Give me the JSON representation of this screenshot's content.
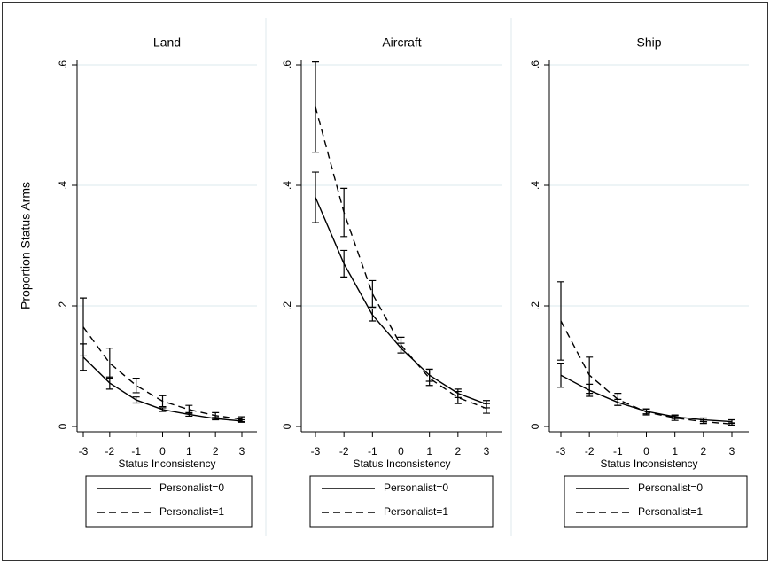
{
  "chart_data": [
    {
      "type": "line",
      "title": "Land",
      "x_label": "Status Inconsistency",
      "y_label": "Proportion Status Arms",
      "x": [
        -3,
        -2,
        -1,
        0,
        1,
        2,
        3
      ],
      "xlim": [
        -3,
        3
      ],
      "xticks": [
        -3,
        -2,
        -1,
        0,
        1,
        2,
        3
      ],
      "ylim": [
        0,
        0.6
      ],
      "yticks": [
        0,
        {
          "value": 0.2,
          "label": ".2"
        },
        {
          "value": 0.4,
          "label": ".4"
        },
        {
          "value": 0.6,
          "label": ".6"
        }
      ],
      "grid": true,
      "series": [
        {
          "name": "Personalist=0",
          "color": "#000000",
          "dash": "solid",
          "values": [
            0.115,
            0.072,
            0.044,
            0.028,
            0.02,
            0.013,
            0.009
          ],
          "errors": [
            0.022,
            0.01,
            0.005,
            0.003,
            0.003,
            0.002,
            0.002
          ]
        },
        {
          "name": "Personalist=1",
          "color": "#000000",
          "dash": "dashed",
          "values": [
            0.165,
            0.105,
            0.068,
            0.042,
            0.028,
            0.018,
            0.012
          ],
          "errors": [
            0.048,
            0.025,
            0.012,
            0.009,
            0.007,
            0.005,
            0.004
          ]
        }
      ]
    },
    {
      "type": "line",
      "title": "Aircraft",
      "x_label": "Status Inconsistency",
      "x": [
        -3,
        -2,
        -1,
        0,
        1,
        2,
        3
      ],
      "xlim": [
        -3,
        3
      ],
      "xticks": [
        -3,
        -2,
        -1,
        0,
        1,
        2,
        3
      ],
      "ylim": [
        0,
        0.6
      ],
      "yticks": [
        0,
        {
          "value": 0.2,
          "label": ".2"
        },
        {
          "value": 0.4,
          "label": ".4"
        },
        {
          "value": 0.6,
          "label": ".6"
        }
      ],
      "grid": true,
      "series": [
        {
          "name": "Personalist=0",
          "color": "#000000",
          "dash": "solid",
          "values": [
            0.38,
            0.27,
            0.185,
            0.13,
            0.085,
            0.055,
            0.037
          ],
          "errors": [
            0.042,
            0.022,
            0.01,
            0.008,
            0.01,
            0.007,
            0.006
          ]
        },
        {
          "name": "Personalist=1",
          "color": "#000000",
          "dash": "dashed",
          "values": [
            0.53,
            0.355,
            0.22,
            0.135,
            0.08,
            0.048,
            0.03
          ],
          "errors": [
            0.075,
            0.04,
            0.022,
            0.013,
            0.012,
            0.01,
            0.008
          ]
        }
      ]
    },
    {
      "type": "line",
      "title": "Ship",
      "x_label": "Status Inconsistency",
      "x": [
        -3,
        -2,
        -1,
        0,
        1,
        2,
        3
      ],
      "xlim": [
        -3,
        3
      ],
      "xticks": [
        -3,
        -2,
        -1,
        0,
        1,
        2,
        3
      ],
      "ylim": [
        0,
        0.6
      ],
      "yticks": [
        0,
        {
          "value": 0.2,
          "label": ".2"
        },
        {
          "value": 0.4,
          "label": ".4"
        },
        {
          "value": 0.6,
          "label": ".6"
        }
      ],
      "grid": true,
      "series": [
        {
          "name": "Personalist=0",
          "color": "#000000",
          "dash": "solid",
          "values": [
            0.085,
            0.06,
            0.04,
            0.025,
            0.016,
            0.011,
            0.008
          ],
          "errors": [
            0.02,
            0.01,
            0.005,
            0.004,
            0.003,
            0.003,
            0.003
          ]
        },
        {
          "name": "Personalist=1",
          "color": "#000000",
          "dash": "dashed",
          "values": [
            0.175,
            0.085,
            0.045,
            0.024,
            0.014,
            0.008,
            0.004
          ],
          "errors": [
            0.065,
            0.03,
            0.01,
            0.005,
            0.004,
            0.003,
            0.002
          ]
        }
      ]
    }
  ]
}
